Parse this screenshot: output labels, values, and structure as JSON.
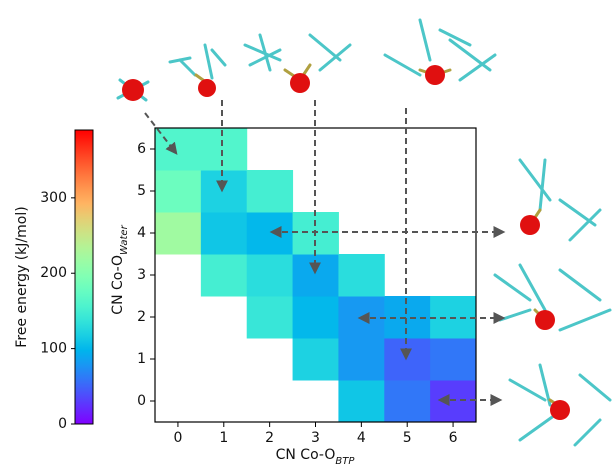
{
  "chart_data": {
    "type": "heatmap",
    "xlabel": {
      "text": "CN Co-O",
      "subscript": "BTP"
    },
    "ylabel": {
      "text": "CN Co-O",
      "subscript": "Water"
    },
    "x": [
      0,
      1,
      2,
      3,
      4,
      5,
      6
    ],
    "y": [
      0,
      1,
      2,
      3,
      4,
      5,
      6
    ],
    "z": [
      [
        null,
        null,
        null,
        null,
        110,
        60,
        30
      ],
      [
        null,
        null,
        null,
        120,
        80,
        50,
        60
      ],
      [
        null,
        null,
        140,
        100,
        80,
        90,
        120
      ],
      [
        null,
        150,
        130,
        90,
        130,
        null,
        null
      ],
      [
        220,
        110,
        100,
        150,
        null,
        null,
        null
      ],
      [
        180,
        120,
        150,
        null,
        null,
        null,
        null
      ],
      [
        160,
        160,
        null,
        null,
        null,
        null,
        null
      ]
    ],
    "xlim": [
      -0.5,
      6.5
    ],
    "ylim": [
      -0.5,
      6.5
    ],
    "xticks": [
      0,
      1,
      2,
      3,
      4,
      5,
      6
    ],
    "yticks": [
      0,
      1,
      2,
      3,
      4,
      5,
      6
    ],
    "colormap": "rainbow",
    "colorbar": {
      "label": "Free energy (kJ/mol)",
      "lim": [
        0,
        390
      ],
      "ticks": [
        0,
        100,
        200,
        300
      ]
    }
  }
}
